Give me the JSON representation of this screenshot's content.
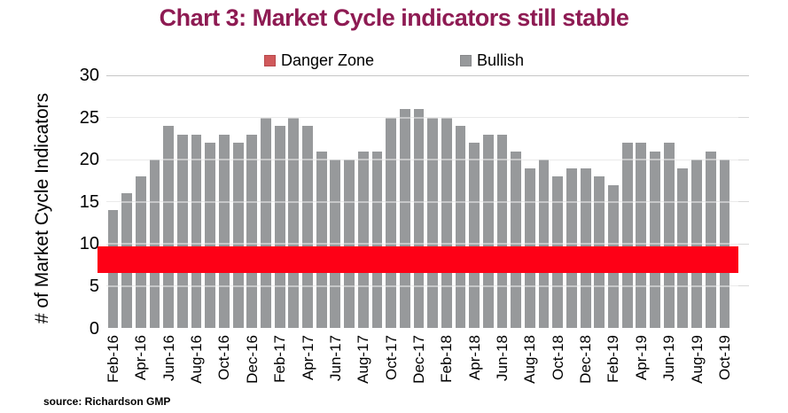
{
  "title": {
    "text": "Chart 3: Market Cycle indicators still stable",
    "color": "#8E1B53"
  },
  "legend": {
    "danger_zone": {
      "label": "Danger Zone",
      "swatch_color": "#D0595B",
      "swatch_border": "#B8484C"
    },
    "bullish": {
      "label": "Bullish",
      "swatch_color": "#97999B",
      "swatch_border": "#88898B"
    }
  },
  "source_note": "source: Richardson GMP",
  "colors": {
    "bar": "#97999B",
    "danger_band": "#FE0016",
    "gridline": "#D9D9D9",
    "gridline_top": "#C6C6C6"
  },
  "chart_data": {
    "type": "bar",
    "title": "Chart 3: Market Cycle indicators still stable",
    "xlabel": "",
    "ylabel": "# of Market Cycle Indicators",
    "ylim": [
      0,
      30
    ],
    "yticks": [
      0,
      5,
      10,
      15,
      20,
      25,
      30
    ],
    "grid": true,
    "legend_position": "top",
    "categories": [
      "Feb-16",
      "Mar-16",
      "Apr-16",
      "May-16",
      "Jun-16",
      "Jul-16",
      "Aug-16",
      "Sep-16",
      "Oct-16",
      "Nov-16",
      "Dec-16",
      "Jan-17",
      "Feb-17",
      "Mar-17",
      "Apr-17",
      "May-17",
      "Jun-17",
      "Jul-17",
      "Aug-17",
      "Sep-17",
      "Oct-17",
      "Nov-17",
      "Dec-17",
      "Jan-18",
      "Feb-18",
      "Mar-18",
      "Apr-18",
      "May-18",
      "Jun-18",
      "Jul-18",
      "Aug-18",
      "Sep-18",
      "Oct-18",
      "Nov-18",
      "Dec-18",
      "Jan-19",
      "Feb-19",
      "Mar-19",
      "Apr-19",
      "May-19",
      "Jun-19",
      "Jul-19",
      "Aug-19",
      "Sep-19",
      "Oct-19"
    ],
    "x_tick_labels": [
      "Feb-16",
      "Apr-16",
      "Jun-16",
      "Aug-16",
      "Oct-16",
      "Dec-16",
      "Feb-17",
      "Apr-17",
      "Jun-17",
      "Aug-17",
      "Oct-17",
      "Dec-17",
      "Feb-18",
      "Apr-18",
      "Jun-18",
      "Aug-18",
      "Oct-18",
      "Dec-18",
      "Feb-19",
      "Apr-19",
      "Jun-19",
      "Aug-19",
      "Oct-19"
    ],
    "series": [
      {
        "name": "Bullish",
        "values": [
          14,
          16,
          18,
          20,
          24,
          23,
          23,
          22,
          23,
          22,
          23,
          25,
          24,
          25,
          24,
          21,
          20,
          20,
          21,
          21,
          25,
          26,
          26,
          25,
          25,
          24,
          22,
          23,
          23,
          21,
          19,
          20,
          18,
          19,
          19,
          18,
          17,
          22,
          22,
          21,
          22,
          19,
          20,
          21,
          20
        ]
      }
    ],
    "danger_zone": {
      "label": "Danger Zone",
      "from": 6.6,
      "to": 9.7
    }
  }
}
